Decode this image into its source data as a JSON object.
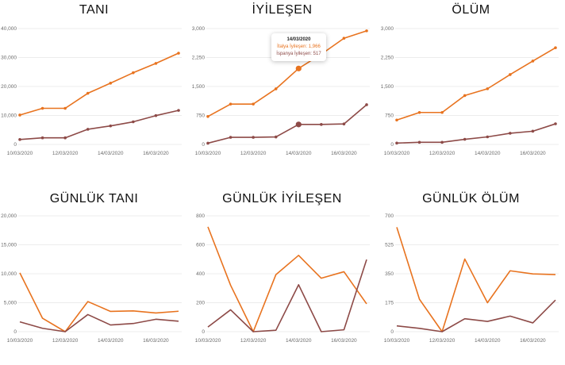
{
  "colors": {
    "italy": "#e8731f",
    "spain": "#8d4a47",
    "grid": "#e6e6e6"
  },
  "x_tick_labels": [
    "10/03/2020",
    "12/03/2020",
    "14/03/2020",
    "16/03/2020"
  ],
  "chart_data": [
    {
      "type": "line",
      "title": "TANI",
      "x": [
        "10/03/2020",
        "11/03/2020",
        "12/03/2020",
        "13/03/2020",
        "14/03/2020",
        "15/03/2020",
        "16/03/2020",
        "17/03/2020"
      ],
      "ylim": [
        0,
        40000
      ],
      "yticks": [
        0,
        10000,
        20000,
        30000,
        40000
      ],
      "ytick_labels": [
        "0",
        "10,000",
        "20,000",
        "30,000",
        "40,000"
      ],
      "markers": true,
      "series": [
        {
          "color": "#e8731f",
          "values": [
            10149,
            12462,
            12462,
            17660,
            21157,
            24747,
            27980,
            31506
          ]
        },
        {
          "color": "#8d4a47",
          "values": [
            1695,
            2277,
            2277,
            5232,
            6391,
            7798,
            9942,
            11748
          ]
        }
      ]
    },
    {
      "type": "line",
      "title": "İYİLEŞEN",
      "x": [
        "10/03/2020",
        "11/03/2020",
        "12/03/2020",
        "13/03/2020",
        "14/03/2020",
        "15/03/2020",
        "16/03/2020",
        "17/03/2020"
      ],
      "ylim": [
        0,
        3000
      ],
      "yticks": [
        0,
        750,
        1500,
        2250,
        3000
      ],
      "ytick_labels": [
        "0",
        "750",
        "1,500",
        "2,250",
        "3,000"
      ],
      "markers": true,
      "series": [
        {
          "color": "#e8731f",
          "values": [
            724,
            1045,
            1045,
            1439,
            1966,
            2335,
            2749,
            2941
          ]
        },
        {
          "color": "#8d4a47",
          "values": [
            32,
            183,
            183,
            193,
            517,
            517,
            530,
            1028
          ]
        }
      ],
      "tooltip": {
        "index": 4,
        "date": "14/03/2020",
        "line1": "İtalya İyileşen: 1,966",
        "line2": "İspanya İyileşen: 517"
      }
    },
    {
      "type": "line",
      "title": "ÖLÜM",
      "x": [
        "10/03/2020",
        "11/03/2020",
        "12/03/2020",
        "13/03/2020",
        "14/03/2020",
        "15/03/2020",
        "16/03/2020",
        "17/03/2020"
      ],
      "ylim": [
        0,
        3000
      ],
      "yticks": [
        0,
        750,
        1500,
        2250,
        3000
      ],
      "ytick_labels": [
        "0",
        "750",
        "1,500",
        "2,250",
        "3,000"
      ],
      "markers": true,
      "series": [
        {
          "color": "#e8731f",
          "values": [
            631,
            827,
            827,
            1266,
            1441,
            1809,
            2158,
            2503
          ]
        },
        {
          "color": "#8d4a47",
          "values": [
            35,
            55,
            55,
            133,
            195,
            289,
            342,
            533
          ]
        }
      ]
    },
    {
      "type": "line",
      "title": "GÜNLÜK TANI",
      "x": [
        "10/03/2020",
        "11/03/2020",
        "12/03/2020",
        "13/03/2020",
        "14/03/2020",
        "15/03/2020",
        "16/03/2020",
        "17/03/2020"
      ],
      "ylim": [
        0,
        20000
      ],
      "yticks": [
        0,
        5000,
        10000,
        15000,
        20000
      ],
      "ytick_labels": [
        "0",
        "5,000",
        "10,000",
        "15,000",
        "20,000"
      ],
      "markers": false,
      "series": [
        {
          "color": "#e8731f",
          "values": [
            10149,
            2313,
            0,
            5198,
            3497,
            3590,
            3233,
            3526
          ]
        },
        {
          "color": "#8d4a47",
          "values": [
            1695,
            582,
            0,
            2955,
            1159,
            1407,
            2144,
            1806
          ]
        }
      ]
    },
    {
      "type": "line",
      "title": "GÜNLÜK İYİLEŞEN",
      "x": [
        "10/03/2020",
        "11/03/2020",
        "12/03/2020",
        "13/03/2020",
        "14/03/2020",
        "15/03/2020",
        "16/03/2020",
        "17/03/2020"
      ],
      "ylim": [
        0,
        800
      ],
      "yticks": [
        0,
        200,
        400,
        600,
        800
      ],
      "ytick_labels": [
        "0",
        "200",
        "400",
        "600",
        "800"
      ],
      "markers": false,
      "series": [
        {
          "color": "#e8731f",
          "values": [
            724,
            321,
            0,
            394,
            527,
            369,
            414,
            192
          ]
        },
        {
          "color": "#8d4a47",
          "values": [
            32,
            151,
            0,
            10,
            324,
            0,
            13,
            498
          ]
        }
      ]
    },
    {
      "type": "line",
      "title": "GÜNLÜK ÖLÜM",
      "x": [
        "10/03/2020",
        "11/03/2020",
        "12/03/2020",
        "13/03/2020",
        "14/03/2020",
        "15/03/2020",
        "16/03/2020",
        "17/03/2020"
      ],
      "ylim": [
        0,
        700
      ],
      "yticks": [
        0,
        175,
        350,
        525,
        700
      ],
      "ytick_labels": [
        "0",
        "175",
        "350",
        "525",
        "700"
      ],
      "markers": false,
      "series": [
        {
          "color": "#e8731f",
          "values": [
            631,
            196,
            0,
            439,
            175,
            368,
            349,
            345
          ]
        },
        {
          "color": "#8d4a47",
          "values": [
            35,
            20,
            0,
            78,
            62,
            94,
            53,
            191
          ]
        }
      ]
    }
  ]
}
